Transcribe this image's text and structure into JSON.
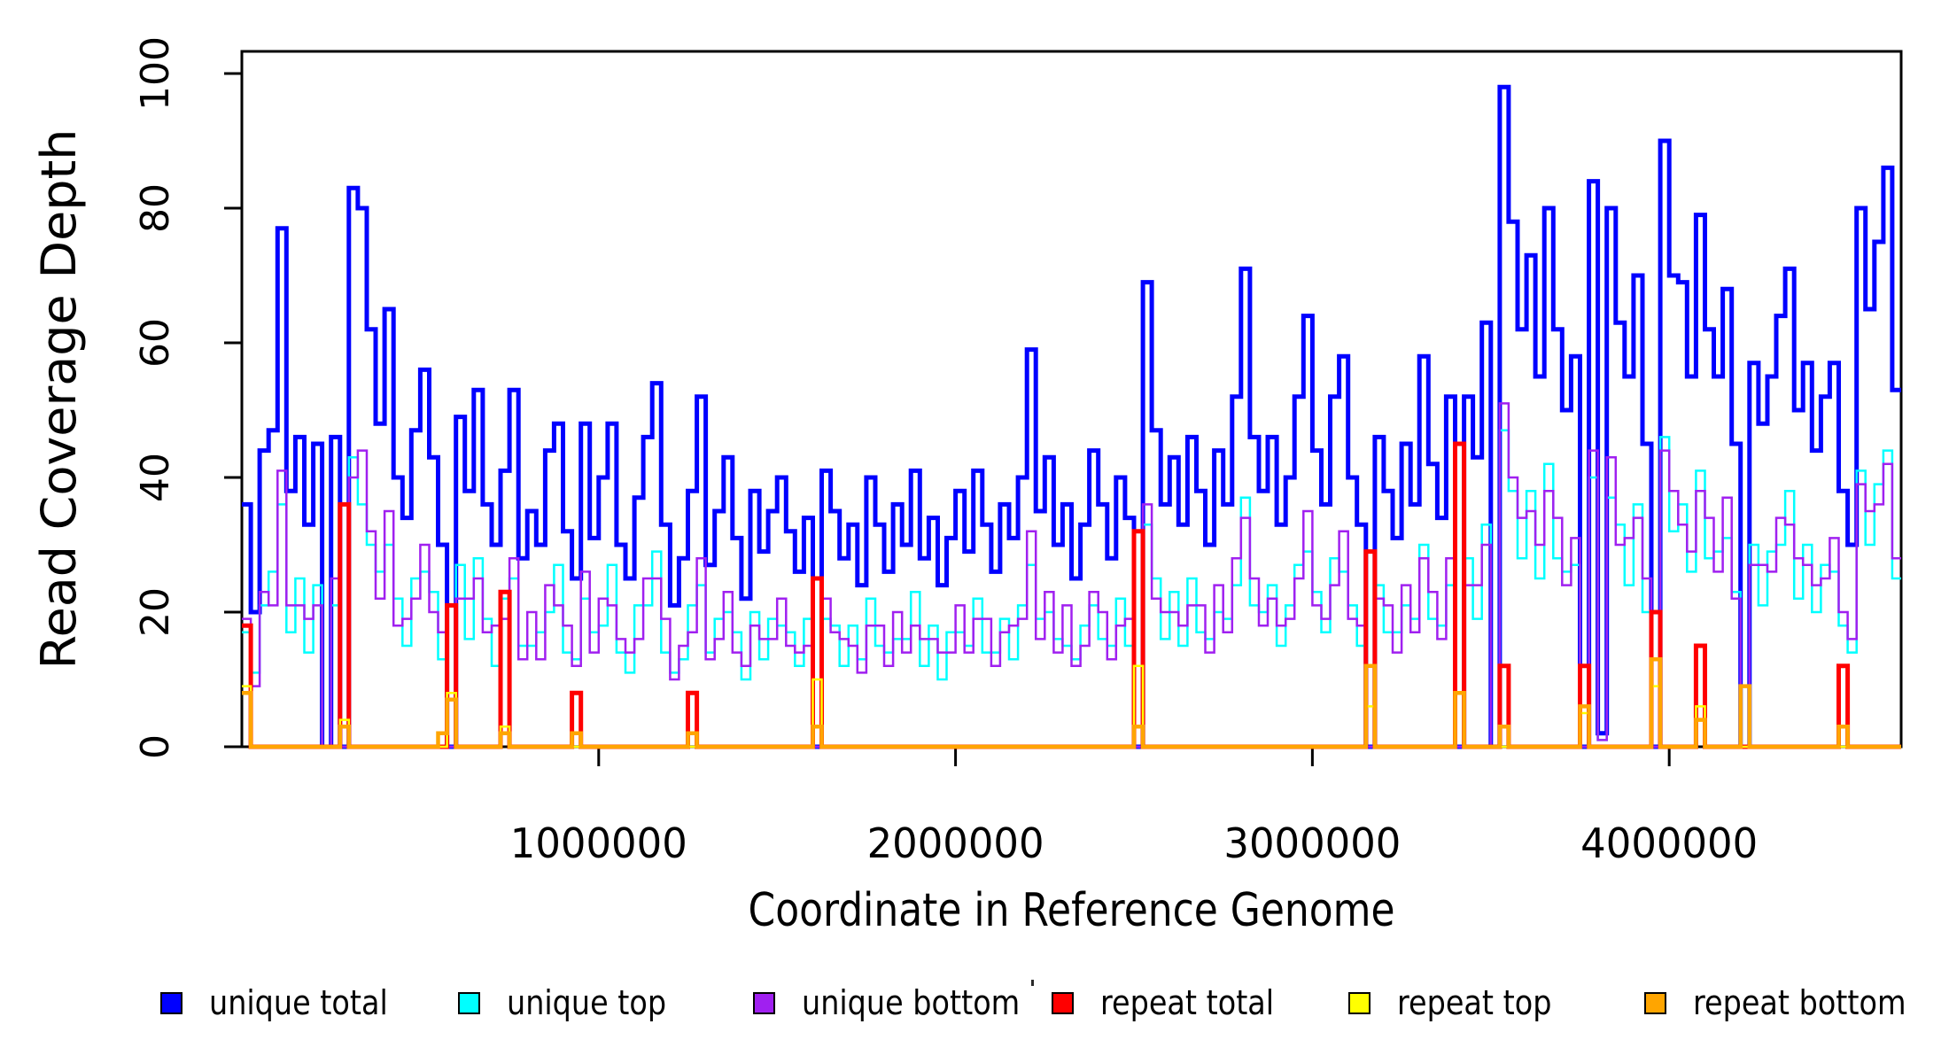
{
  "figure": {
    "background": "#ffffff",
    "xlabel": "Coordinate in Reference Genome",
    "ylabel": "Read Coverage Depth",
    "y_ticks": [
      "0",
      "20",
      "40",
      "60",
      "80",
      "100"
    ],
    "y_tick_values": [
      0,
      20,
      40,
      60,
      80,
      100
    ],
    "x_ticks": [
      "1000000",
      "2000000",
      "3000000",
      "4000000"
    ],
    "x_tick_values": [
      1000000,
      2000000,
      3000000,
      4000000
    ],
    "xlim": [
      0,
      4650000
    ],
    "ylim": [
      0,
      103
    ],
    "axis_color": "#000000"
  },
  "chart_data": {
    "type": "line",
    "step": true,
    "x_start": 0,
    "bin_size": 25000,
    "xlabel": "Coordinate in Reference Genome",
    "ylabel": "Read Coverage Depth",
    "legend_position": "bottom",
    "grid": false,
    "series": [
      {
        "name": "unique total",
        "color": "#0000ff",
        "width": 5,
        "values": [
          36,
          20,
          44,
          47,
          77,
          38,
          46,
          33,
          45,
          0,
          46,
          0,
          83,
          80,
          62,
          48,
          65,
          40,
          34,
          47,
          56,
          43,
          30,
          0,
          49,
          38,
          53,
          36,
          30,
          41,
          53,
          28,
          35,
          30,
          44,
          48,
          32,
          25,
          48,
          31,
          40,
          48,
          30,
          25,
          37,
          46,
          54,
          33,
          21,
          28,
          38,
          52,
          27,
          35,
          43,
          31,
          22,
          38,
          29,
          35,
          40,
          32,
          26,
          34,
          0,
          41,
          35,
          28,
          33,
          24,
          40,
          33,
          26,
          36,
          30,
          41,
          28,
          34,
          24,
          31,
          38,
          29,
          41,
          33,
          26,
          36,
          31,
          40,
          59,
          35,
          43,
          30,
          36,
          25,
          33,
          44,
          36,
          28,
          40,
          34,
          0,
          69,
          47,
          36,
          43,
          33,
          46,
          38,
          30,
          44,
          36,
          52,
          71,
          46,
          38,
          46,
          33,
          40,
          52,
          64,
          44,
          36,
          52,
          58,
          40,
          33,
          0,
          46,
          38,
          31,
          45,
          36,
          58,
          42,
          34,
          52,
          0,
          52,
          43,
          63,
          0,
          98,
          78,
          62,
          73,
          55,
          80,
          62,
          50,
          58,
          0,
          84,
          2,
          80,
          63,
          55,
          70,
          45,
          0,
          90,
          70,
          69,
          55,
          79,
          62,
          55,
          68,
          45,
          0,
          57,
          48,
          55,
          64,
          71,
          50,
          57,
          44,
          52,
          57,
          38,
          30,
          80,
          65,
          75,
          86,
          53
        ]
      },
      {
        "name": "unique top",
        "color": "#00ffff",
        "width": 2.5,
        "values": [
          17,
          11,
          21,
          26,
          36,
          17,
          25,
          14,
          24,
          0,
          21,
          0,
          43,
          36,
          30,
          26,
          30,
          22,
          15,
          25,
          26,
          23,
          13,
          0,
          27,
          16,
          28,
          19,
          12,
          22,
          25,
          15,
          15,
          17,
          20,
          27,
          14,
          13,
          22,
          17,
          18,
          27,
          14,
          11,
          21,
          21,
          29,
          14,
          11,
          13,
          21,
          24,
          14,
          19,
          20,
          17,
          10,
          20,
          13,
          19,
          18,
          17,
          12,
          19,
          0,
          19,
          18,
          12,
          18,
          13,
          22,
          15,
          14,
          16,
          16,
          23,
          12,
          18,
          10,
          17,
          17,
          15,
          22,
          14,
          14,
          19,
          13,
          21,
          27,
          19,
          20,
          16,
          15,
          13,
          18,
          21,
          16,
          15,
          22,
          15,
          0,
          33,
          25,
          16,
          23,
          15,
          25,
          17,
          16,
          20,
          19,
          24,
          37,
          21,
          20,
          24,
          15,
          21,
          27,
          29,
          23,
          17,
          28,
          26,
          21,
          15,
          0,
          24,
          17,
          17,
          21,
          19,
          30,
          19,
          18,
          24,
          0,
          28,
          19,
          33,
          0,
          47,
          38,
          28,
          38,
          25,
          42,
          28,
          26,
          27,
          0,
          40,
          1,
          37,
          33,
          24,
          36,
          20,
          0,
          46,
          32,
          36,
          26,
          41,
          28,
          29,
          31,
          23,
          0,
          30,
          21,
          29,
          30,
          38,
          22,
          30,
          20,
          27,
          26,
          18,
          14,
          41,
          30,
          39,
          44,
          25
        ]
      },
      {
        "name": "unique bottom",
        "color": "#a020f0",
        "width": 2.5,
        "values": [
          19,
          9,
          23,
          21,
          41,
          21,
          21,
          19,
          21,
          0,
          25,
          0,
          40,
          44,
          32,
          22,
          35,
          18,
          19,
          22,
          30,
          20,
          17,
          0,
          22,
          22,
          25,
          17,
          18,
          19,
          28,
          13,
          20,
          13,
          24,
          21,
          18,
          12,
          26,
          14,
          22,
          21,
          16,
          14,
          16,
          25,
          25,
          19,
          10,
          15,
          17,
          28,
          13,
          16,
          23,
          14,
          12,
          18,
          16,
          16,
          22,
          15,
          14,
          15,
          0,
          22,
          17,
          16,
          15,
          11,
          18,
          18,
          12,
          20,
          14,
          18,
          16,
          16,
          14,
          14,
          21,
          14,
          19,
          19,
          12,
          17,
          18,
          19,
          32,
          16,
          23,
          14,
          21,
          12,
          15,
          23,
          20,
          13,
          18,
          19,
          0,
          36,
          22,
          20,
          20,
          18,
          21,
          21,
          14,
          24,
          17,
          28,
          34,
          25,
          18,
          22,
          18,
          19,
          25,
          35,
          21,
          19,
          24,
          32,
          19,
          18,
          0,
          22,
          21,
          14,
          24,
          17,
          28,
          23,
          16,
          28,
          0,
          24,
          24,
          30,
          0,
          51,
          40,
          34,
          35,
          30,
          38,
          34,
          24,
          31,
          0,
          44,
          1,
          43,
          30,
          31,
          34,
          25,
          0,
          44,
          38,
          33,
          29,
          38,
          34,
          26,
          37,
          22,
          0,
          27,
          27,
          26,
          34,
          33,
          28,
          27,
          24,
          25,
          31,
          20,
          16,
          39,
          35,
          36,
          42,
          28
        ]
      },
      {
        "name": "repeat total",
        "color": "#ff0000",
        "width": 5,
        "values": [
          18,
          0,
          0,
          0,
          0,
          0,
          0,
          0,
          0,
          0,
          0,
          36,
          0,
          0,
          0,
          0,
          0,
          0,
          0,
          0,
          0,
          0,
          0,
          21,
          0,
          0,
          0,
          0,
          0,
          23,
          0,
          0,
          0,
          0,
          0,
          0,
          0,
          8,
          0,
          0,
          0,
          0,
          0,
          0,
          0,
          0,
          0,
          0,
          0,
          0,
          8,
          0,
          0,
          0,
          0,
          0,
          0,
          0,
          0,
          0,
          0,
          0,
          0,
          0,
          25,
          0,
          0,
          0,
          0,
          0,
          0,
          0,
          0,
          0,
          0,
          0,
          0,
          0,
          0,
          0,
          0,
          0,
          0,
          0,
          0,
          0,
          0,
          0,
          0,
          0,
          0,
          0,
          0,
          0,
          0,
          0,
          0,
          0,
          0,
          0,
          32,
          0,
          0,
          0,
          0,
          0,
          0,
          0,
          0,
          0,
          0,
          0,
          0,
          0,
          0,
          0,
          0,
          0,
          0,
          0,
          0,
          0,
          0,
          0,
          0,
          0,
          29,
          0,
          0,
          0,
          0,
          0,
          0,
          0,
          0,
          0,
          45,
          0,
          0,
          0,
          0,
          12,
          0,
          0,
          0,
          0,
          0,
          0,
          0,
          0,
          12,
          0,
          0,
          0,
          0,
          0,
          0,
          0,
          20,
          0,
          0,
          0,
          0,
          15,
          0,
          0,
          0,
          0,
          0,
          0,
          0,
          0,
          0,
          0,
          0,
          0,
          0,
          0,
          0,
          12,
          0,
          0,
          0,
          0,
          0,
          0
        ]
      },
      {
        "name": "repeat top",
        "color": "#ffff00",
        "width": 2.5,
        "values": [
          9,
          0,
          0,
          0,
          0,
          0,
          0,
          0,
          0,
          0,
          0,
          4,
          0,
          0,
          0,
          0,
          0,
          0,
          0,
          0,
          0,
          0,
          0,
          8,
          0,
          0,
          0,
          0,
          0,
          3,
          0,
          0,
          0,
          0,
          0,
          0,
          0,
          0,
          0,
          0,
          0,
          0,
          0,
          0,
          0,
          0,
          0,
          0,
          0,
          0,
          0,
          0,
          0,
          0,
          0,
          0,
          0,
          0,
          0,
          0,
          0,
          0,
          0,
          0,
          10,
          0,
          0,
          0,
          0,
          0,
          0,
          0,
          0,
          0,
          0,
          0,
          0,
          0,
          0,
          0,
          0,
          0,
          0,
          0,
          0,
          0,
          0,
          0,
          0,
          0,
          0,
          0,
          0,
          0,
          0,
          0,
          0,
          0,
          0,
          0,
          12,
          0,
          0,
          0,
          0,
          0,
          0,
          0,
          0,
          0,
          0,
          0,
          0,
          0,
          0,
          0,
          0,
          0,
          0,
          0,
          0,
          0,
          0,
          0,
          0,
          0,
          6,
          0,
          0,
          0,
          0,
          0,
          0,
          0,
          0,
          0,
          8,
          0,
          0,
          0,
          0,
          0,
          0,
          0,
          0,
          0,
          0,
          0,
          0,
          0,
          5,
          0,
          0,
          0,
          0,
          0,
          0,
          0,
          9,
          0,
          0,
          0,
          0,
          6,
          0,
          0,
          0,
          0,
          0,
          0,
          0,
          0,
          0,
          0,
          0,
          0,
          0,
          0,
          0,
          0,
          0,
          0,
          0,
          0,
          0,
          0
        ]
      },
      {
        "name": "repeat bottom",
        "color": "#ffa500",
        "width": 4.5,
        "values": [
          8,
          0,
          0,
          0,
          0,
          0,
          0,
          0,
          0,
          0,
          0,
          3,
          0,
          0,
          0,
          0,
          0,
          0,
          0,
          0,
          0,
          0,
          2,
          7,
          0,
          0,
          0,
          0,
          0,
          2,
          0,
          0,
          0,
          0,
          0,
          0,
          0,
          2,
          0,
          0,
          0,
          0,
          0,
          0,
          0,
          0,
          0,
          0,
          0,
          0,
          2,
          0,
          0,
          0,
          0,
          0,
          0,
          0,
          0,
          0,
          0,
          0,
          0,
          0,
          3,
          0,
          0,
          0,
          0,
          0,
          0,
          0,
          0,
          0,
          0,
          0,
          0,
          0,
          0,
          0,
          0,
          0,
          0,
          0,
          0,
          0,
          0,
          0,
          0,
          0,
          0,
          0,
          0,
          0,
          0,
          0,
          0,
          0,
          0,
          0,
          3,
          0,
          0,
          0,
          0,
          0,
          0,
          0,
          0,
          0,
          0,
          0,
          0,
          0,
          0,
          0,
          0,
          0,
          0,
          0,
          0,
          0,
          0,
          0,
          0,
          0,
          12,
          0,
          0,
          0,
          0,
          0,
          0,
          0,
          0,
          0,
          8,
          0,
          0,
          0,
          0,
          3,
          0,
          0,
          0,
          0,
          0,
          0,
          0,
          0,
          6,
          0,
          0,
          0,
          0,
          0,
          0,
          0,
          13,
          0,
          0,
          0,
          0,
          4,
          0,
          0,
          0,
          0,
          9,
          0,
          0,
          0,
          0,
          0,
          0,
          0,
          0,
          0,
          0,
          3,
          0,
          0,
          0,
          0,
          0,
          0
        ]
      }
    ]
  }
}
